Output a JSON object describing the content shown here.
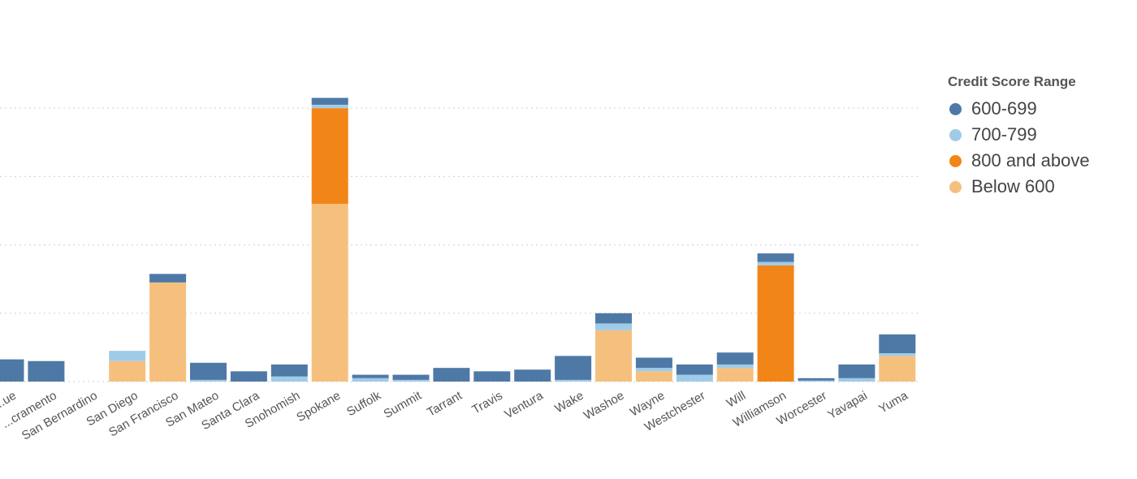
{
  "chart_data": {
    "type": "bar",
    "stacked": true,
    "grid": true,
    "legend_position": "top-right",
    "categories": [
      "...ue",
      "...cramento",
      "San Bernardino",
      "San Diego",
      "San Francisco",
      "San Mateo",
      "Santa Clara",
      "Snohomish",
      "Spokane",
      "Suffolk",
      "Summit",
      "Tarrant",
      "Travis",
      "Ventura",
      "Wake",
      "Washoe",
      "Wayne",
      "Westchester",
      "Will",
      "Williamson",
      "Worcester",
      "Yavapai",
      "Yuma"
    ],
    "ylim": [
      0,
      80
    ],
    "yticks": [
      20,
      40,
      60,
      80
    ],
    "series": [
      {
        "name": "Below 600",
        "color": "#f5c07e",
        "values": [
          0,
          0,
          0,
          6,
          29,
          0,
          0,
          0,
          52,
          0,
          0,
          0,
          0,
          0,
          0,
          15,
          3,
          0,
          4,
          0,
          0,
          0,
          7.5
        ]
      },
      {
        "name": "800 and above",
        "color": "#f28518",
        "values": [
          0,
          0,
          0,
          0,
          0,
          0,
          0,
          0,
          28,
          0,
          0,
          0,
          0,
          0,
          0,
          0,
          0,
          0,
          0,
          34,
          0,
          0,
          0
        ]
      },
      {
        "name": "700-799",
        "color": "#a0cbe8",
        "values": [
          0,
          0,
          0,
          3,
          0,
          0.5,
          0,
          1.5,
          1,
          1,
          0.5,
          0,
          0,
          0,
          0.5,
          2,
          1,
          2,
          1,
          1,
          0.3,
          1,
          0.8
        ]
      },
      {
        "name": "600-699",
        "color": "#4e79a7",
        "values": [
          6.5,
          6,
          0,
          0,
          2.5,
          5,
          3,
          3.5,
          2,
          1,
          1.5,
          4,
          3,
          3.5,
          7,
          3,
          3,
          3,
          3.5,
          2.5,
          0.7,
          4,
          5.5
        ]
      }
    ]
  },
  "legend": {
    "title": "Credit Score Range",
    "items": [
      {
        "label": "600-699",
        "color": "#4e79a7"
      },
      {
        "label": "700-799",
        "color": "#a0cbe8"
      },
      {
        "label": "800 and above",
        "color": "#f28518"
      },
      {
        "label": "Below 600",
        "color": "#f5c07e"
      }
    ]
  }
}
